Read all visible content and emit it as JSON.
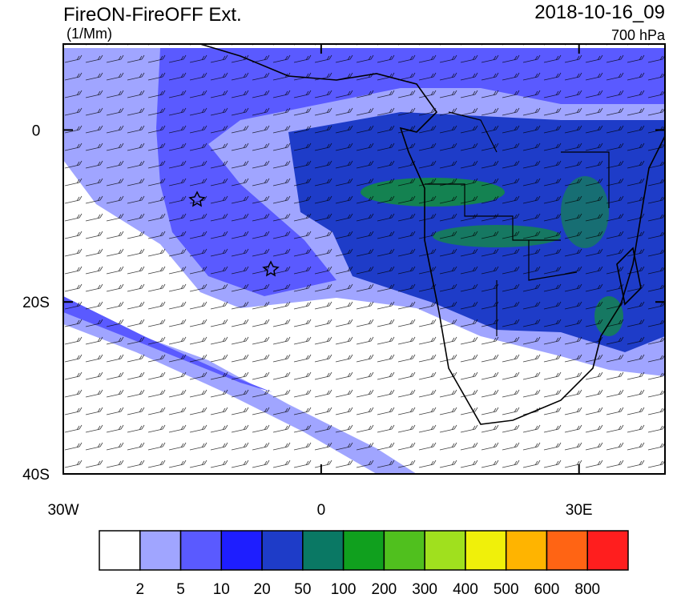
{
  "header": {
    "title": "FireON-FireOFF Ext.",
    "units": "(1/Mm)",
    "time": "2018-10-16_09",
    "level": "700 hPa"
  },
  "map": {
    "lonlim": [
      -30,
      40
    ],
    "latlim": [
      -40,
      10
    ],
    "lon_ticks": [
      {
        "value": -30,
        "label": "30W"
      },
      0,
      {
        "value": 30,
        "label": "30E"
      }
    ],
    "lat_ticks": [
      0,
      {
        "value": -20,
        "label": "20S"
      },
      {
        "value": -40,
        "label": "40S"
      }
    ]
  },
  "colorbar": {
    "levels": [
      2,
      5,
      10,
      20,
      50,
      100,
      200,
      300,
      400,
      500,
      600,
      800
    ],
    "colors": [
      "#ffffff",
      "#a0a5ff",
      "#5a5aff",
      "#1e1eff",
      "#1e3cc8",
      "#0a7864",
      "#10a01e",
      "#50c01e",
      "#a0e01e",
      "#f0f00a",
      "#ffb400",
      "#ff6414",
      "#ff1e1e"
    ]
  }
}
